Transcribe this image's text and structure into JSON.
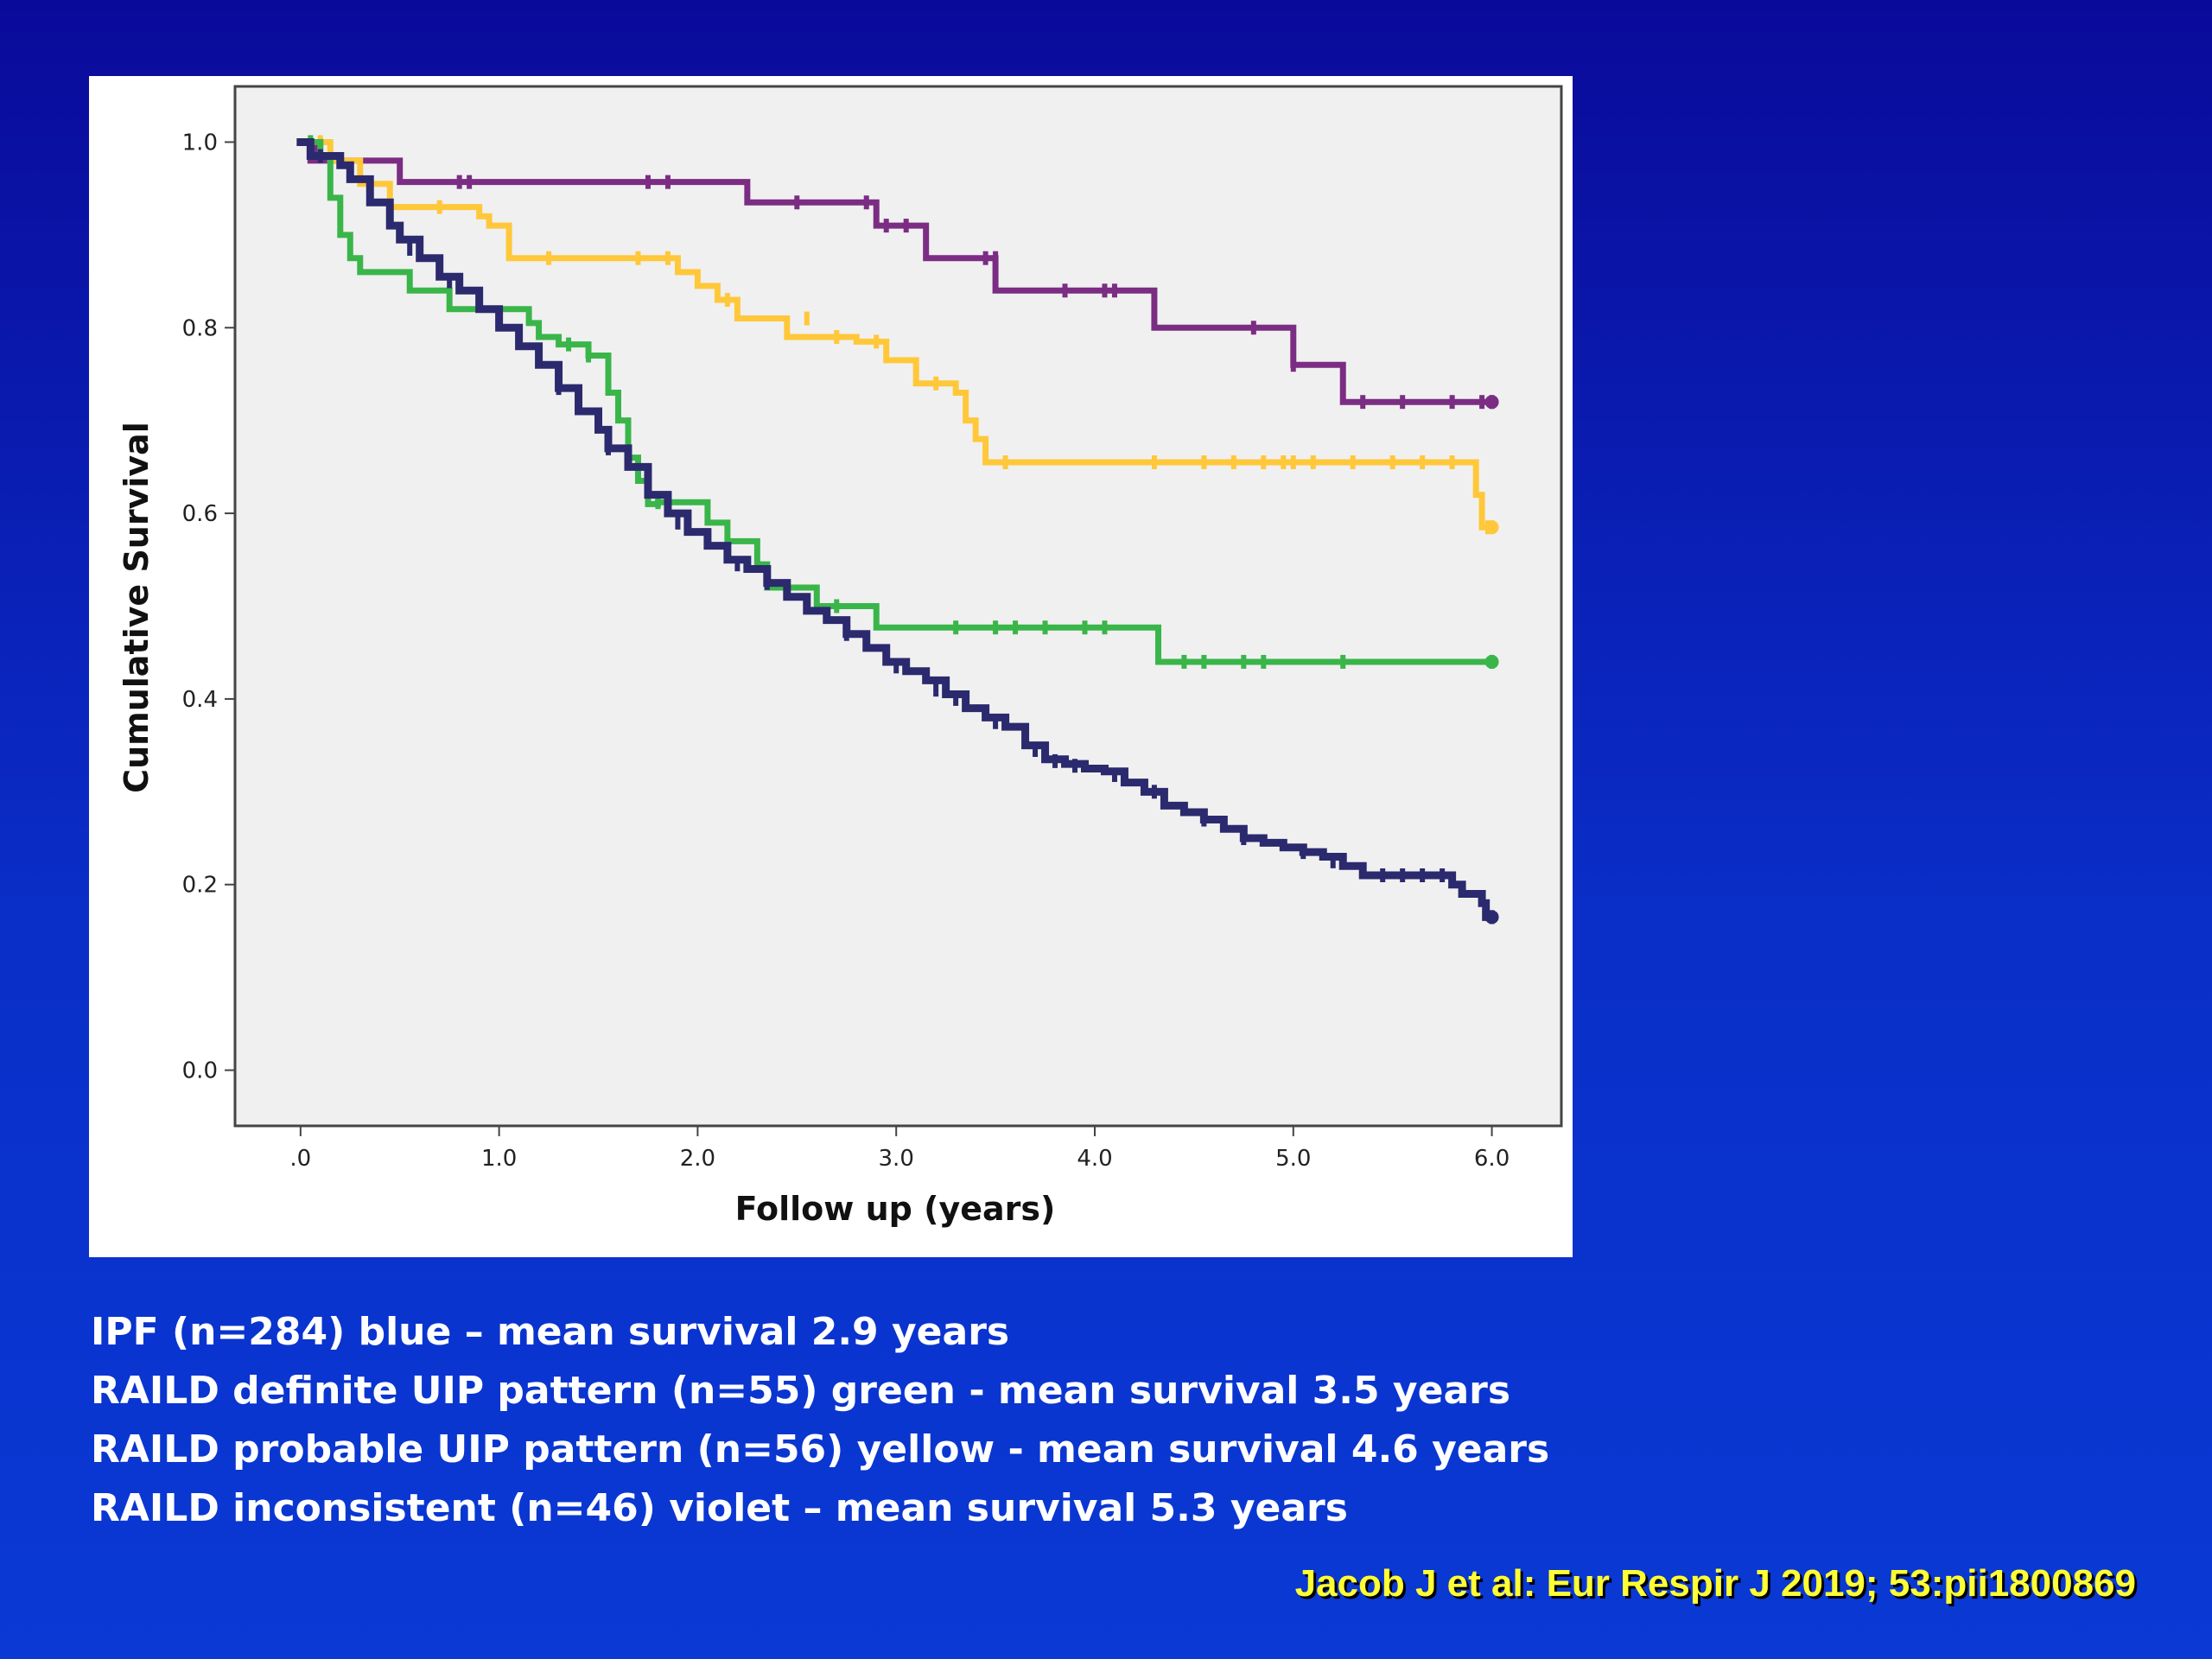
{
  "chart_data": {
    "type": "line",
    "step": true,
    "xlabel": "Follow up (years)",
    "ylabel": "Cumulative Survival",
    "xlim": [
      -0.33,
      6.35
    ],
    "ylim": [
      -0.06,
      1.06
    ],
    "x_ticks": [
      0,
      1,
      2,
      3,
      4,
      5,
      6
    ],
    "x_tick_labels": [
      ".0",
      "1.0",
      "2.0",
      "3.0",
      "4.0",
      "5.0",
      "6.0"
    ],
    "y_ticks": [
      0,
      0.2,
      0.4,
      0.6,
      0.8,
      1.0
    ],
    "y_tick_labels": [
      "0.0",
      "0.2",
      "0.4",
      "0.6",
      "0.8",
      "1.0"
    ],
    "grid": false,
    "plot_background": "#f0f0f0",
    "series": [
      {
        "color": "#7b2d83",
        "points": [
          [
            0,
            1.0
          ],
          [
            0.05,
            0.98
          ],
          [
            0.5,
            0.957
          ],
          [
            2.25,
            0.935
          ],
          [
            2.9,
            0.91
          ],
          [
            3.15,
            0.875
          ],
          [
            3.5,
            0.84
          ],
          [
            4.3,
            0.8
          ],
          [
            5.0,
            0.76
          ],
          [
            5.25,
            0.72
          ],
          [
            6.0,
            0.72
          ]
        ],
        "censors": [
          [
            0.08,
            0.99
          ],
          [
            0.2,
            0.98
          ],
          [
            0.8,
            0.957
          ],
          [
            0.85,
            0.957
          ],
          [
            1.75,
            0.957
          ],
          [
            1.85,
            0.957
          ],
          [
            2.5,
            0.935
          ],
          [
            2.85,
            0.935
          ],
          [
            2.95,
            0.91
          ],
          [
            3.05,
            0.91
          ],
          [
            3.45,
            0.875
          ],
          [
            3.5,
            0.875
          ],
          [
            3.85,
            0.84
          ],
          [
            4.05,
            0.84
          ],
          [
            4.1,
            0.84
          ],
          [
            4.8,
            0.8
          ],
          [
            5.0,
            0.76
          ],
          [
            5.35,
            0.72
          ],
          [
            5.55,
            0.72
          ],
          [
            5.8,
            0.72
          ],
          [
            5.95,
            0.72
          ],
          [
            6.0,
            0.72
          ]
        ]
      },
      {
        "color": "#ffc83a",
        "points": [
          [
            0,
            1.0
          ],
          [
            0.15,
            0.98
          ],
          [
            0.3,
            0.955
          ],
          [
            0.45,
            0.93
          ],
          [
            0.9,
            0.92
          ],
          [
            0.95,
            0.91
          ],
          [
            1.05,
            0.89
          ],
          [
            1.05,
            0.875
          ],
          [
            1.9,
            0.86
          ],
          [
            2.0,
            0.845
          ],
          [
            2.1,
            0.83
          ],
          [
            2.2,
            0.81
          ],
          [
            2.45,
            0.79
          ],
          [
            2.8,
            0.785
          ],
          [
            2.95,
            0.765
          ],
          [
            3.1,
            0.74
          ],
          [
            3.3,
            0.73
          ],
          [
            3.35,
            0.7
          ],
          [
            3.4,
            0.68
          ],
          [
            3.45,
            0.655
          ],
          [
            5.9,
            0.655
          ],
          [
            5.92,
            0.62
          ],
          [
            5.95,
            0.585
          ],
          [
            6.0,
            0.585
          ]
        ],
        "censors": [
          [
            0.05,
            1.0
          ],
          [
            0.1,
            1.0
          ],
          [
            0.7,
            0.93
          ],
          [
            1.25,
            0.875
          ],
          [
            1.7,
            0.875
          ],
          [
            1.85,
            0.875
          ],
          [
            2.15,
            0.83
          ],
          [
            2.55,
            0.81
          ],
          [
            2.7,
            0.79
          ],
          [
            2.9,
            0.785
          ],
          [
            3.2,
            0.74
          ],
          [
            3.55,
            0.655
          ],
          [
            4.3,
            0.655
          ],
          [
            4.55,
            0.655
          ],
          [
            4.7,
            0.655
          ],
          [
            4.85,
            0.655
          ],
          [
            4.95,
            0.655
          ],
          [
            5.0,
            0.655
          ],
          [
            5.1,
            0.655
          ],
          [
            5.3,
            0.655
          ],
          [
            5.5,
            0.655
          ],
          [
            5.65,
            0.655
          ],
          [
            5.8,
            0.655
          ],
          [
            5.98,
            0.585
          ],
          [
            6.0,
            0.585
          ]
        ]
      },
      {
        "color": "#3ab54a",
        "points": [
          [
            0,
            1.0
          ],
          [
            0.1,
            0.985
          ],
          [
            0.15,
            0.94
          ],
          [
            0.2,
            0.9
          ],
          [
            0.25,
            0.875
          ],
          [
            0.3,
            0.86
          ],
          [
            0.55,
            0.84
          ],
          [
            0.75,
            0.82
          ],
          [
            1.15,
            0.805
          ],
          [
            1.2,
            0.79
          ],
          [
            1.3,
            0.782
          ],
          [
            1.45,
            0.77
          ],
          [
            1.55,
            0.73
          ],
          [
            1.6,
            0.7
          ],
          [
            1.65,
            0.66
          ],
          [
            1.7,
            0.635
          ],
          [
            1.75,
            0.61
          ],
          [
            1.8,
            0.612
          ],
          [
            2.05,
            0.59
          ],
          [
            2.15,
            0.57
          ],
          [
            2.3,
            0.545
          ],
          [
            2.35,
            0.52
          ],
          [
            2.6,
            0.5
          ],
          [
            2.9,
            0.477
          ],
          [
            4.3,
            0.477
          ],
          [
            4.32,
            0.44
          ],
          [
            6.0,
            0.44
          ]
        ],
        "censors": [
          [
            0.05,
            1.0
          ],
          [
            1.35,
            0.782
          ],
          [
            1.45,
            0.77
          ],
          [
            1.8,
            0.612
          ],
          [
            2.7,
            0.5
          ],
          [
            3.3,
            0.477
          ],
          [
            3.5,
            0.477
          ],
          [
            3.6,
            0.477
          ],
          [
            3.75,
            0.477
          ],
          [
            3.95,
            0.477
          ],
          [
            4.05,
            0.477
          ],
          [
            4.45,
            0.44
          ],
          [
            4.55,
            0.44
          ],
          [
            4.75,
            0.44
          ],
          [
            4.85,
            0.44
          ],
          [
            5.25,
            0.44
          ],
          [
            6.0,
            0.44
          ]
        ]
      },
      {
        "color": "#2b2a6e",
        "points": [
          [
            0,
            1.0
          ],
          [
            0.05,
            0.985
          ],
          [
            0.1,
            0.985
          ],
          [
            0.2,
            0.975
          ],
          [
            0.25,
            0.96
          ],
          [
            0.35,
            0.935
          ],
          [
            0.45,
            0.91
          ],
          [
            0.5,
            0.895
          ],
          [
            0.6,
            0.875
          ],
          [
            0.7,
            0.855
          ],
          [
            0.8,
            0.84
          ],
          [
            0.9,
            0.82
          ],
          [
            1.0,
            0.8
          ],
          [
            1.1,
            0.78
          ],
          [
            1.2,
            0.76
          ],
          [
            1.3,
            0.735
          ],
          [
            1.4,
            0.71
          ],
          [
            1.5,
            0.69
          ],
          [
            1.55,
            0.67
          ],
          [
            1.65,
            0.65
          ],
          [
            1.75,
            0.62
          ],
          [
            1.85,
            0.6
          ],
          [
            1.95,
            0.58
          ],
          [
            2.05,
            0.565
          ],
          [
            2.15,
            0.55
          ],
          [
            2.25,
            0.54
          ],
          [
            2.35,
            0.525
          ],
          [
            2.45,
            0.51
          ],
          [
            2.55,
            0.495
          ],
          [
            2.65,
            0.485
          ],
          [
            2.75,
            0.47
          ],
          [
            2.85,
            0.455
          ],
          [
            2.95,
            0.44
          ],
          [
            3.05,
            0.43
          ],
          [
            3.15,
            0.42
          ],
          [
            3.25,
            0.405
          ],
          [
            3.35,
            0.39
          ],
          [
            3.45,
            0.38
          ],
          [
            3.55,
            0.37
          ],
          [
            3.65,
            0.35
          ],
          [
            3.75,
            0.335
          ],
          [
            3.85,
            0.33
          ],
          [
            3.95,
            0.325
          ],
          [
            4.05,
            0.322
          ],
          [
            4.15,
            0.31
          ],
          [
            4.25,
            0.3
          ],
          [
            4.35,
            0.285
          ],
          [
            4.45,
            0.278
          ],
          [
            4.55,
            0.27
          ],
          [
            4.65,
            0.26
          ],
          [
            4.75,
            0.25
          ],
          [
            4.85,
            0.245
          ],
          [
            4.95,
            0.24
          ],
          [
            5.05,
            0.235
          ],
          [
            5.15,
            0.23
          ],
          [
            5.25,
            0.22
          ],
          [
            5.35,
            0.21
          ],
          [
            5.75,
            0.21
          ],
          [
            5.8,
            0.2
          ],
          [
            5.85,
            0.19
          ],
          [
            5.95,
            0.18
          ],
          [
            5.97,
            0.165
          ],
          [
            6.0,
            0.165
          ]
        ],
        "censors": [
          [
            0.1,
            0.985
          ],
          [
            0.55,
            0.885
          ],
          [
            0.75,
            0.85
          ],
          [
            1.3,
            0.735
          ],
          [
            1.55,
            0.67
          ],
          [
            1.9,
            0.59
          ],
          [
            2.2,
            0.545
          ],
          [
            2.35,
            0.525
          ],
          [
            2.75,
            0.47
          ],
          [
            3.0,
            0.435
          ],
          [
            3.2,
            0.41
          ],
          [
            3.3,
            0.4
          ],
          [
            3.5,
            0.375
          ],
          [
            3.7,
            0.345
          ],
          [
            3.8,
            0.333
          ],
          [
            3.9,
            0.328
          ],
          [
            4.1,
            0.318
          ],
          [
            4.3,
            0.3
          ],
          [
            4.55,
            0.27
          ],
          [
            4.75,
            0.25
          ],
          [
            5.05,
            0.235
          ],
          [
            5.2,
            0.225
          ],
          [
            5.45,
            0.21
          ],
          [
            5.55,
            0.21
          ],
          [
            5.65,
            0.21
          ],
          [
            5.75,
            0.21
          ],
          [
            6.0,
            0.165
          ]
        ]
      }
    ]
  },
  "captions": [
    "IPF (n=284) blue – mean survival 2.9 years",
    "RAILD definite UIP pattern (n=55) green - mean survival 3.5 years",
    "RAILD probable UIP pattern (n=56) yellow - mean survival 4.6 years",
    "RAILD inconsistent (n=46) violet – mean survival 5.3 years"
  ],
  "citation": "Jacob J et al: Eur Respir J 2019; 53:pii1800869"
}
